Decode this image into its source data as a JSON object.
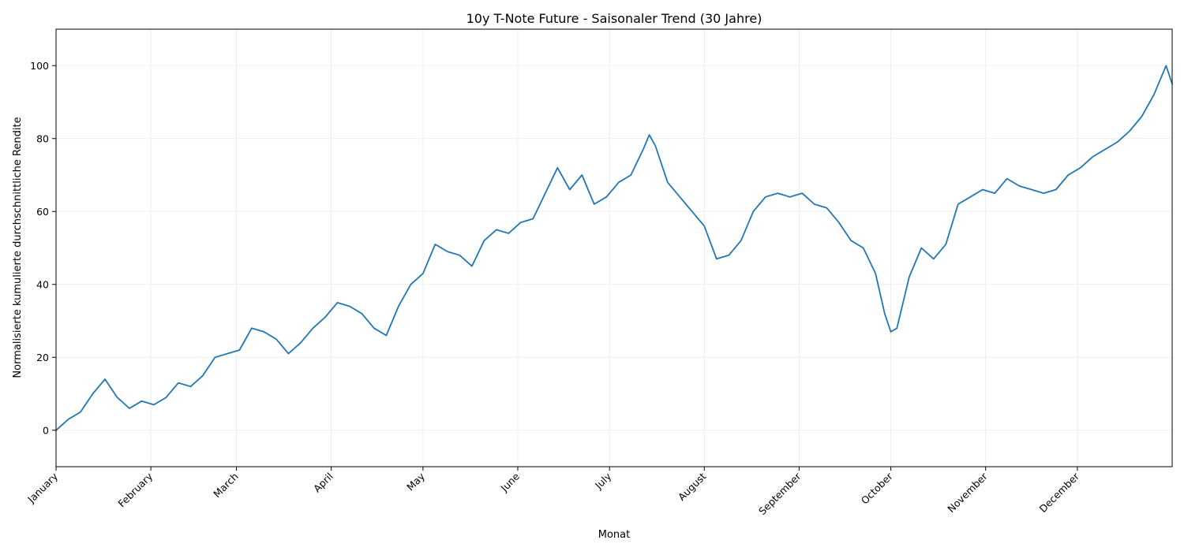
{
  "chart_data": {
    "type": "line",
    "title": "10y T-Note Future - Saisonaler Trend (30 Jahre)",
    "xlabel": "Monat",
    "ylabel": "Normalisierte kumulierte durchschnittliche Rendite",
    "ylim": [
      -10,
      110
    ],
    "xlim": [
      1,
      366
    ],
    "yticks": [
      0,
      20,
      40,
      60,
      80,
      100
    ],
    "grid": true,
    "series_color": "#1f77b4",
    "month_ticks": [
      {
        "label": "January",
        "day": 1
      },
      {
        "label": "February",
        "day": 32
      },
      {
        "label": "March",
        "day": 60
      },
      {
        "label": "April",
        "day": 91
      },
      {
        "label": "May",
        "day": 121
      },
      {
        "label": "June",
        "day": 152
      },
      {
        "label": "July",
        "day": 182
      },
      {
        "label": "August",
        "day": 213
      },
      {
        "label": "September",
        "day": 244
      },
      {
        "label": "October",
        "day": 274
      },
      {
        "label": "November",
        "day": 305
      },
      {
        "label": "December",
        "day": 335
      }
    ],
    "series": [
      {
        "x": [
          1,
          5,
          9,
          13,
          17,
          21,
          25,
          29,
          33,
          37,
          41,
          45,
          49,
          53,
          57,
          61,
          65,
          69,
          73,
          77,
          81,
          85,
          89,
          93,
          97,
          101,
          105,
          109,
          113,
          117,
          121,
          125,
          129,
          133,
          137,
          141,
          145,
          149,
          153,
          157,
          161,
          165,
          169,
          173,
          177,
          181,
          185,
          189,
          193,
          195,
          197,
          201,
          205,
          209,
          213,
          217,
          221,
          225,
          229,
          233,
          237,
          241,
          245,
          249,
          253,
          257,
          261,
          265,
          269,
          272,
          274,
          276,
          280,
          284,
          288,
          292,
          296,
          300,
          304,
          308,
          312,
          316,
          320,
          324,
          328,
          332,
          336,
          340,
          344,
          348,
          352,
          356,
          360,
          364,
          366
        ],
        "values": [
          0,
          3,
          5,
          10,
          14,
          9,
          6,
          8,
          7,
          9,
          13,
          12,
          15,
          20,
          21,
          22,
          28,
          27,
          25,
          21,
          24,
          28,
          31,
          35,
          34,
          32,
          28,
          26,
          34,
          40,
          43,
          51,
          49,
          48,
          45,
          52,
          55,
          54,
          57,
          58,
          65,
          72,
          66,
          70,
          62,
          64,
          68,
          70,
          77,
          81,
          78,
          68,
          64,
          60,
          56,
          47,
          48,
          52,
          60,
          64,
          65,
          64,
          65,
          62,
          61,
          57,
          52,
          50,
          43,
          32,
          27,
          28,
          42,
          50,
          47,
          51,
          62,
          64,
          66,
          65,
          69,
          67,
          66,
          65,
          66,
          70,
          72,
          75,
          77,
          79,
          82,
          86,
          92,
          100,
          95
        ]
      }
    ]
  }
}
